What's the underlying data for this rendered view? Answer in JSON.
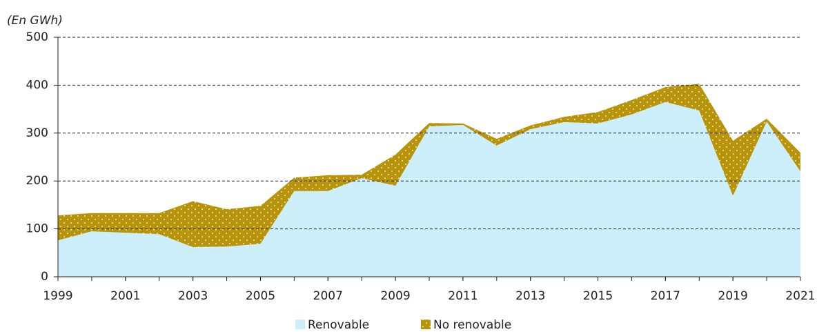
{
  "chart_data": {
    "type": "stacked_area",
    "ylabel": "(En GWh)",
    "x": [
      1999,
      2000,
      2001,
      2002,
      2003,
      2004,
      2005,
      2006,
      2007,
      2008,
      2009,
      2010,
      2011,
      2012,
      2013,
      2014,
      2015,
      2016,
      2017,
      2018,
      2019,
      2020,
      2021
    ],
    "series": [
      {
        "name": "Renovable",
        "color": "#cdeefb",
        "values": [
          76,
          95,
          92,
          89,
          62,
          63,
          69,
          179,
          179,
          206,
          190,
          314,
          317,
          274,
          308,
          323,
          320,
          339,
          365,
          347,
          169,
          324,
          220
        ]
      },
      {
        "name": "No renovable",
        "color": "#b8940a",
        "values": [
          52,
          38,
          41,
          44,
          96,
          78,
          79,
          28,
          33,
          7,
          65,
          7,
          3,
          14,
          8,
          11,
          24,
          30,
          31,
          56,
          115,
          6,
          39
        ]
      }
    ],
    "xlim": [
      1999,
      2021
    ],
    "xticks": [
      1999,
      2001,
      2003,
      2005,
      2007,
      2009,
      2011,
      2013,
      2015,
      2017,
      2019,
      2021
    ],
    "ylim": [
      0,
      500
    ],
    "yticks": [
      0,
      100,
      200,
      300,
      400,
      500
    ],
    "grid": true,
    "legend": "bottom"
  }
}
